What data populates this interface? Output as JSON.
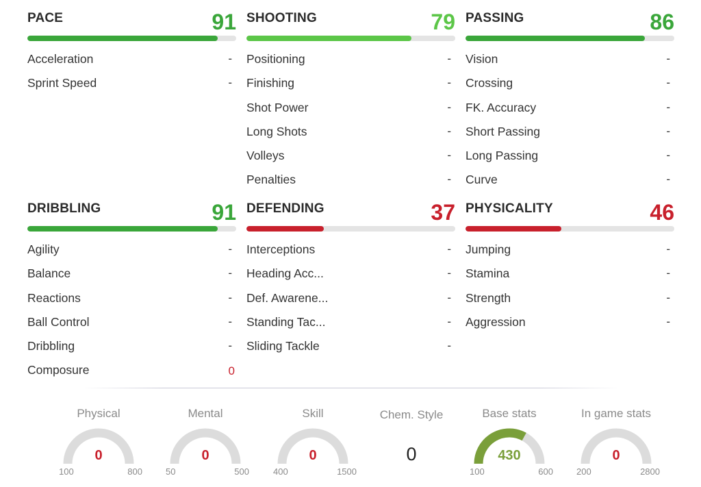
{
  "colors": {
    "green_dark": "#3aa63a",
    "green_light": "#5cc648",
    "red": "#c8202c",
    "track": "#e4e4e4",
    "gauge_track": "#dcdcdc",
    "gauge_fill": "#7a9f3a"
  },
  "categories": [
    {
      "id": "pace",
      "title": "PACE",
      "value": "91",
      "fraction": 0.91,
      "color": "#3aa63a",
      "stats": [
        {
          "label": "Acceleration",
          "value": "-"
        },
        {
          "label": "Sprint Speed",
          "value": "-"
        }
      ]
    },
    {
      "id": "shooting",
      "title": "SHOOTING",
      "value": "79",
      "fraction": 0.79,
      "color": "#5cc648",
      "stats": [
        {
          "label": "Positioning",
          "value": "-"
        },
        {
          "label": "Finishing",
          "value": "-"
        },
        {
          "label": "Shot Power",
          "value": "-"
        },
        {
          "label": "Long Shots",
          "value": "-"
        },
        {
          "label": "Volleys",
          "value": "-"
        },
        {
          "label": "Penalties",
          "value": "-"
        }
      ]
    },
    {
      "id": "passing",
      "title": "PASSING",
      "value": "86",
      "fraction": 0.86,
      "color": "#3aa63a",
      "stats": [
        {
          "label": "Vision",
          "value": "-"
        },
        {
          "label": "Crossing",
          "value": "-"
        },
        {
          "label": "FK. Accuracy",
          "value": "-"
        },
        {
          "label": "Short Passing",
          "value": "-"
        },
        {
          "label": "Long Passing",
          "value": "-"
        },
        {
          "label": "Curve",
          "value": "-"
        }
      ]
    },
    {
      "id": "dribbling",
      "title": "DRIBBLING",
      "value": "91",
      "fraction": 0.91,
      "color": "#3aa63a",
      "stats": [
        {
          "label": "Agility",
          "value": "-"
        },
        {
          "label": "Balance",
          "value": "-"
        },
        {
          "label": "Reactions",
          "value": "-"
        },
        {
          "label": "Ball Control",
          "value": "-"
        },
        {
          "label": "Dribbling",
          "value": "-"
        },
        {
          "label": "Composure",
          "value": "0",
          "red": true
        }
      ]
    },
    {
      "id": "defending",
      "title": "DEFENDING",
      "value": "37",
      "fraction": 0.37,
      "color": "#c8202c",
      "stats": [
        {
          "label": "Interceptions",
          "value": "-"
        },
        {
          "label": "Heading Acc...",
          "value": "-"
        },
        {
          "label": "Def. Awarene...",
          "value": "-"
        },
        {
          "label": "Standing Tac...",
          "value": "-"
        },
        {
          "label": "Sliding Tackle",
          "value": "-"
        }
      ]
    },
    {
      "id": "physicality",
      "title": "PHYSICALITY",
      "value": "46",
      "fraction": 0.46,
      "color": "#c8202c",
      "stats": [
        {
          "label": "Jumping",
          "value": "-"
        },
        {
          "label": "Stamina",
          "value": "-"
        },
        {
          "label": "Strength",
          "value": "-"
        },
        {
          "label": "Aggression",
          "value": "-"
        }
      ]
    }
  ],
  "gauges": [
    {
      "id": "physical",
      "title": "Physical",
      "value": "0",
      "min": "100",
      "max": "800",
      "fraction": 0,
      "value_color": "#c8202c"
    },
    {
      "id": "mental",
      "title": "Mental",
      "value": "0",
      "min": "50",
      "max": "500",
      "fraction": 0,
      "value_color": "#c8202c"
    },
    {
      "id": "skill",
      "title": "Skill",
      "value": "0",
      "min": "400",
      "max": "1500",
      "fraction": 0,
      "value_color": "#c8202c"
    },
    {
      "id": "base-stats",
      "title": "Base stats",
      "value": "430",
      "min": "100",
      "max": "600",
      "fraction": 0.66,
      "value_color": "#7a9f3a"
    },
    {
      "id": "in-game-stats",
      "title": "In game stats",
      "value": "0",
      "min": "200",
      "max": "2800",
      "fraction": 0,
      "value_color": "#c8202c"
    }
  ],
  "chem_style": {
    "title": "Chem. Style",
    "value": "0"
  }
}
